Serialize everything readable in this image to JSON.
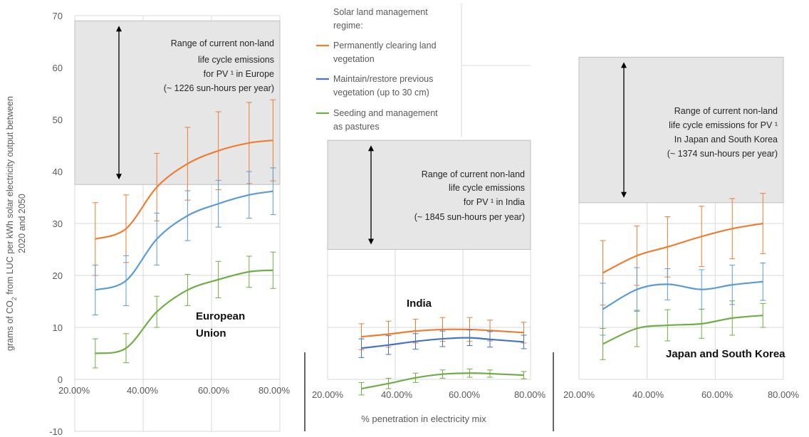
{
  "chart_data": {
    "type": "line",
    "ylabel_line1": "grams of  CO",
    "ylabel_sub": "2",
    "ylabel_line1b": " from LUC per kWh solar electricity output between",
    "ylabel_line2": "2020 and 2050",
    "xlabel": "% penetration in electricity mix",
    "ylim": [
      -10,
      70
    ],
    "yticks": [
      -10,
      0,
      10,
      20,
      30,
      40,
      50,
      60,
      70
    ],
    "xticks": [
      "20.00%",
      "40.00%",
      "60.00%",
      "80.00%"
    ],
    "legend": {
      "title": [
        "Solar land management",
        "regime:"
      ],
      "entries": [
        {
          "lines": [
            "Permanently clearing land",
            "vegetation"
          ],
          "color": "#ED7D31"
        },
        {
          "lines": [
            "Maintain/restore previous",
            "vegetation (up to 30 cm)"
          ],
          "color": "#4472C4"
        },
        {
          "lines": [
            "Seeding and management",
            "as pastures"
          ],
          "color": "#70AD47"
        }
      ]
    },
    "panels": [
      {
        "region": [
          "European",
          "Union"
        ],
        "xlim": [
          20,
          80
        ],
        "band": [
          37.5,
          69
        ],
        "band_text": [
          "Range of current non-land",
          "life cycle emissions",
          "for PV ¹ in Europe",
          "(~ 1226 sun-hours per year)"
        ],
        "x": [
          26,
          35,
          44,
          53,
          62,
          71,
          78
        ],
        "series": [
          {
            "color": "#ED7D31",
            "values": [
              27,
              29,
              37,
              41.5,
              44,
              45.5,
              46
            ],
            "err": [
              7,
              6.5,
              6.5,
              7,
              7.5,
              7.8,
              7.8
            ]
          },
          {
            "color": "#5B9BD5",
            "values": [
              17.2,
              19,
              27,
              31.5,
              33.8,
              35.5,
              36.2
            ],
            "err": [
              4.8,
              4.8,
              5,
              4.8,
              4.5,
              4.5,
              4.5
            ]
          },
          {
            "color": "#70AD47",
            "values": [
              5,
              6,
              13,
              17.2,
              19.2,
              20.7,
              21
            ],
            "err": [
              2.8,
              2.8,
              3,
              3,
              3.5,
              3,
              3.5
            ]
          }
        ]
      },
      {
        "region": [
          "India"
        ],
        "xlim": [
          20,
          80
        ],
        "band": [
          25,
          46
        ],
        "band_text": [
          "Range of current non-land",
          "life cycle emissions",
          "for PV ¹ in India",
          "(~ 1845 sun-hours per year)"
        ],
        "x": [
          30,
          38,
          46,
          54,
          62,
          68,
          78
        ],
        "series": [
          {
            "color": "#ED7D31",
            "values": [
              8.2,
              8.7,
              9.3,
              9.6,
              9.6,
              9.4,
              9
            ],
            "err": [
              2.5,
              2.5,
              2.3,
              2.3,
              2.3,
              2,
              2
            ]
          },
          {
            "color": "#4472C4",
            "values": [
              6,
              6.6,
              7.3,
              7.8,
              8,
              7.7,
              7.2
            ],
            "err": [
              1.8,
              1.8,
              1.5,
              1.5,
              1.5,
              1.5,
              1.3
            ]
          },
          {
            "color": "#70AD47",
            "values": [
              -1.8,
              -0.8,
              0.3,
              1,
              1.2,
              1.1,
              0.8
            ],
            "err": [
              1.2,
              1,
              0.9,
              0.8,
              0.8,
              0.7,
              0.7
            ]
          }
        ]
      },
      {
        "region": [
          "Japan and South Korea"
        ],
        "xlim": [
          20,
          80
        ],
        "band": [
          34,
          62
        ],
        "band_text": [
          "Range of current non-land",
          "life cycle emissions for PV ¹",
          "In Japan and South Korea",
          "(~ 1374 sun-hours per year)"
        ],
        "x": [
          27,
          37,
          46,
          56,
          65,
          74
        ],
        "series": [
          {
            "color": "#ED7D31",
            "values": [
              20.5,
              23.8,
              25.5,
              27.5,
              29,
              30
            ],
            "err": [
              6.2,
              5.7,
              5.8,
              5.8,
              5.8,
              5.8
            ]
          },
          {
            "color": "#5B9BD5",
            "values": [
              13.5,
              17.3,
              18.3,
              17.3,
              18.2,
              18.8
            ],
            "err": [
              5,
              4.2,
              3,
              3.8,
              3.8,
              3.6
            ]
          },
          {
            "color": "#70AD47",
            "values": [
              6.8,
              9.8,
              10.4,
              10.7,
              11.8,
              12.3
            ],
            "err": [
              3,
              3.5,
              3,
              2.8,
              3.3,
              2.3
            ]
          }
        ]
      }
    ]
  }
}
